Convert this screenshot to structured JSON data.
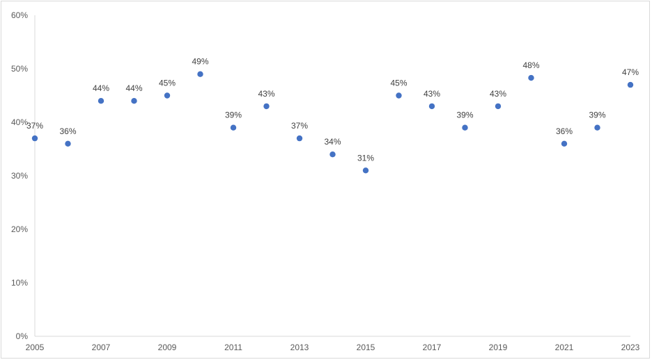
{
  "chart_data": {
    "type": "scatter",
    "title": "",
    "xlabel": "",
    "ylabel": "",
    "xlim": [
      2005,
      2023
    ],
    "ylim": [
      0,
      60
    ],
    "x_ticks": [
      "2005",
      "2007",
      "2009",
      "2011",
      "2013",
      "2015",
      "2017",
      "2019",
      "2021",
      "2023"
    ],
    "y_ticks": [
      "0%",
      "10%",
      "20%",
      "30%",
      "40%",
      "50%",
      "60%"
    ],
    "grid": false,
    "legend": "none",
    "marker_color": "#4472c4",
    "series": [
      {
        "x": [
          2005,
          2006,
          2007,
          2008,
          2009,
          2010,
          2011,
          2012,
          2013,
          2014,
          2015,
          2016,
          2017,
          2018,
          2019,
          2020,
          2021,
          2022,
          2023
        ],
        "values": [
          37,
          36,
          44,
          44,
          45,
          49,
          39,
          43,
          37,
          34,
          31,
          45,
          43,
          39,
          43,
          48.3,
          36,
          39,
          47
        ],
        "labels": [
          "37%",
          "36%",
          "44%",
          "44%",
          "45%",
          "49%",
          "39%",
          "43%",
          "37%",
          "34%",
          "31%",
          "45%",
          "43%",
          "39%",
          "43%",
          "48%",
          "36%",
          "39%",
          "47%"
        ]
      }
    ]
  }
}
